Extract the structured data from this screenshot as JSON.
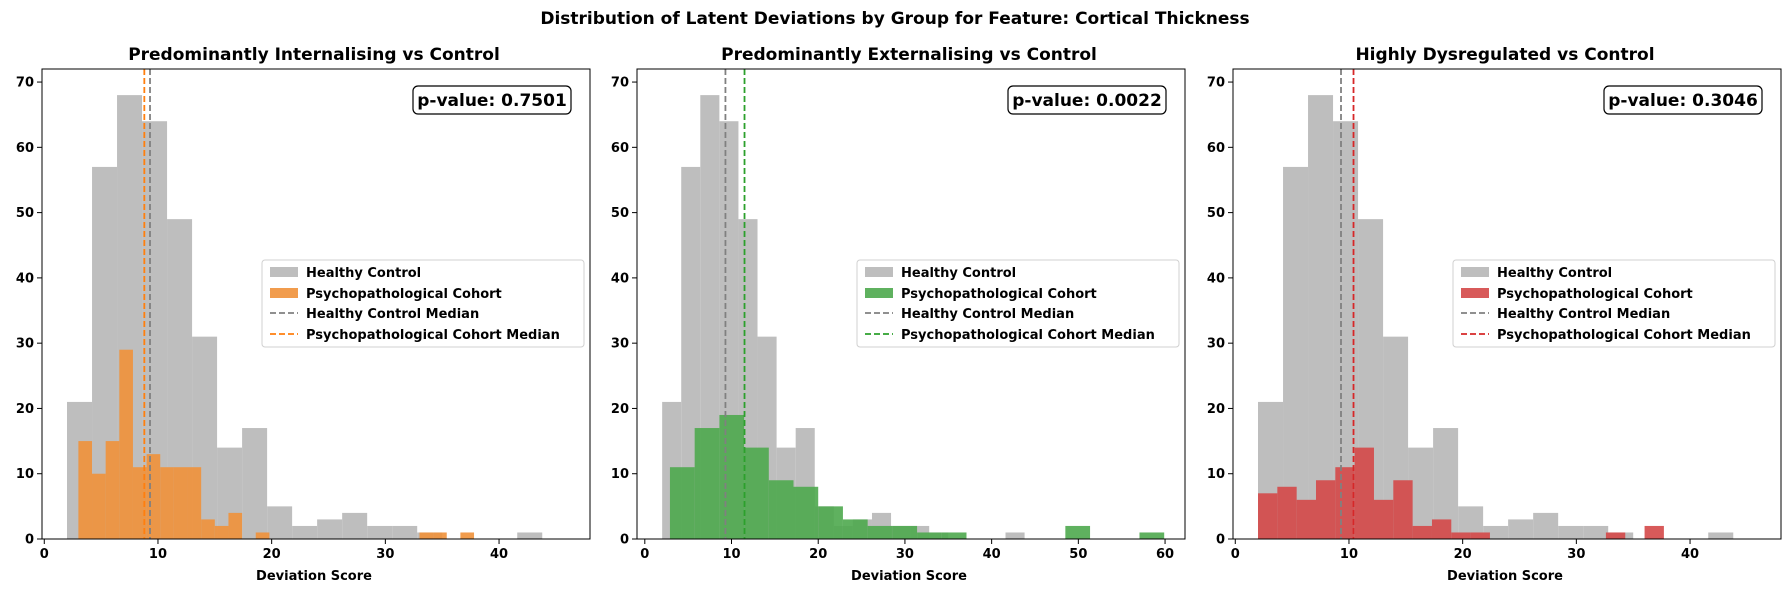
{
  "figure": {
    "title": "Distribution of Latent Deviations by Group for Feature: Cortical Thickness"
  },
  "colors": {
    "control": "#bebebe",
    "control_median": "#808080",
    "internalising": "#f0913a",
    "internalising_median": "#ff7f0e",
    "externalising": "#4ea94e",
    "externalising_median": "#2ca02c",
    "dysregulated": "#d44848",
    "dysregulated_median": "#d62728"
  },
  "chart_data": [
    {
      "type": "bar",
      "title": "Predominantly Internalising vs Control",
      "xlabel": "Deviation Score",
      "ylabel": "",
      "xlim": [
        -0.2,
        48
      ],
      "ylim": [
        0,
        72
      ],
      "xticks": [
        0,
        10,
        20,
        30,
        40
      ],
      "yticks": [
        0,
        10,
        20,
        30,
        40,
        50,
        60,
        70
      ],
      "grid": false,
      "legend_position": "center-right",
      "p_value_label": "p-value: 0.7501",
      "legend": [
        "Healthy Control",
        "Psychopathological Cohort",
        "Healthy Control Median",
        "Psychopathological Cohort Median"
      ],
      "series": [
        {
          "name": "Healthy Control",
          "color_key": "control",
          "bin_start": 2.0,
          "bin_width": 2.2,
          "counts": [
            21,
            57,
            68,
            64,
            49,
            31,
            14,
            17,
            5,
            2,
            3,
            4,
            2,
            2,
            1,
            0,
            0,
            0,
            1
          ]
        },
        {
          "name": "Psychopathological Cohort",
          "color_key": "internalising",
          "bin_start": 3.0,
          "bin_width": 1.2,
          "counts": [
            15,
            10,
            15,
            29,
            11,
            13,
            11,
            11,
            11,
            3,
            2,
            4,
            0,
            1,
            0,
            0,
            0,
            0,
            0,
            0,
            0,
            0,
            0,
            0,
            0,
            1,
            1,
            0,
            1
          ]
        }
      ],
      "medians": [
        {
          "name": "Healthy Control Median",
          "value": 9.3,
          "color_key": "control_median"
        },
        {
          "name": "Psychopathological Cohort Median",
          "value": 8.8,
          "color_key": "internalising_median"
        }
      ]
    },
    {
      "type": "bar",
      "title": "Predominantly Externalising vs Control",
      "xlabel": "Deviation Score",
      "ylabel": "",
      "xlim": [
        -0.9,
        62.3
      ],
      "ylim": [
        0,
        72
      ],
      "xticks": [
        0,
        10,
        20,
        30,
        40,
        50,
        60
      ],
      "yticks": [
        0,
        10,
        20,
        30,
        40,
        50,
        60,
        70
      ],
      "grid": false,
      "legend_position": "center-right",
      "p_value_label": "p-value: 0.0022",
      "legend": [
        "Healthy Control",
        "Psychopathological Cohort",
        "Healthy Control Median",
        "Psychopathological Cohort Median"
      ],
      "series": [
        {
          "name": "Healthy Control",
          "color_key": "control",
          "bin_start": 2.0,
          "bin_width": 2.2,
          "counts": [
            21,
            57,
            68,
            64,
            49,
            31,
            14,
            17,
            5,
            2,
            3,
            4,
            2,
            2,
            1,
            0,
            0,
            0,
            1
          ]
        },
        {
          "name": "Psychopathological Cohort",
          "color_key": "externalising",
          "bin_start": 2.9,
          "bin_width": 2.85,
          "counts": [
            11,
            17,
            19,
            14,
            9,
            8,
            5,
            3,
            2,
            2,
            1,
            1,
            0,
            0,
            0,
            0,
            2,
            0,
            0,
            1
          ]
        }
      ],
      "medians": [
        {
          "name": "Healthy Control Median",
          "value": 9.3,
          "color_key": "control_median"
        },
        {
          "name": "Psychopathological Cohort Median",
          "value": 11.5,
          "color_key": "externalising_median"
        }
      ]
    },
    {
      "type": "bar",
      "title": "Highly Dysregulated vs Control",
      "xlabel": "Deviation Score",
      "ylabel": "",
      "xlim": [
        -0.2,
        48
      ],
      "ylim": [
        0,
        72
      ],
      "xticks": [
        0,
        10,
        20,
        30,
        40
      ],
      "yticks": [
        0,
        10,
        20,
        30,
        40,
        50,
        60,
        70
      ],
      "grid": false,
      "legend_position": "center-right",
      "p_value_label": "p-value: 0.3046",
      "legend": [
        "Healthy Control",
        "Psychopathological Cohort",
        "Healthy Control Median",
        "Psychopathological Cohort Median"
      ],
      "series": [
        {
          "name": "Healthy Control",
          "color_key": "control",
          "bin_start": 2.0,
          "bin_width": 2.2,
          "counts": [
            21,
            57,
            68,
            64,
            49,
            31,
            14,
            17,
            5,
            2,
            3,
            4,
            2,
            2,
            1,
            0,
            0,
            0,
            1
          ]
        },
        {
          "name": "Psychopathological Cohort",
          "color_key": "dysregulated",
          "bin_start": 2.0,
          "bin_width": 1.7,
          "counts": [
            7,
            8,
            6,
            9,
            11,
            14,
            6,
            9,
            2,
            3,
            1,
            1,
            0,
            0,
            0,
            0,
            0,
            0,
            1,
            0,
            2
          ]
        }
      ],
      "medians": [
        {
          "name": "Healthy Control Median",
          "value": 9.3,
          "color_key": "control_median"
        },
        {
          "name": "Psychopathological Cohort Median",
          "value": 10.4,
          "color_key": "dysregulated_median"
        }
      ]
    }
  ]
}
